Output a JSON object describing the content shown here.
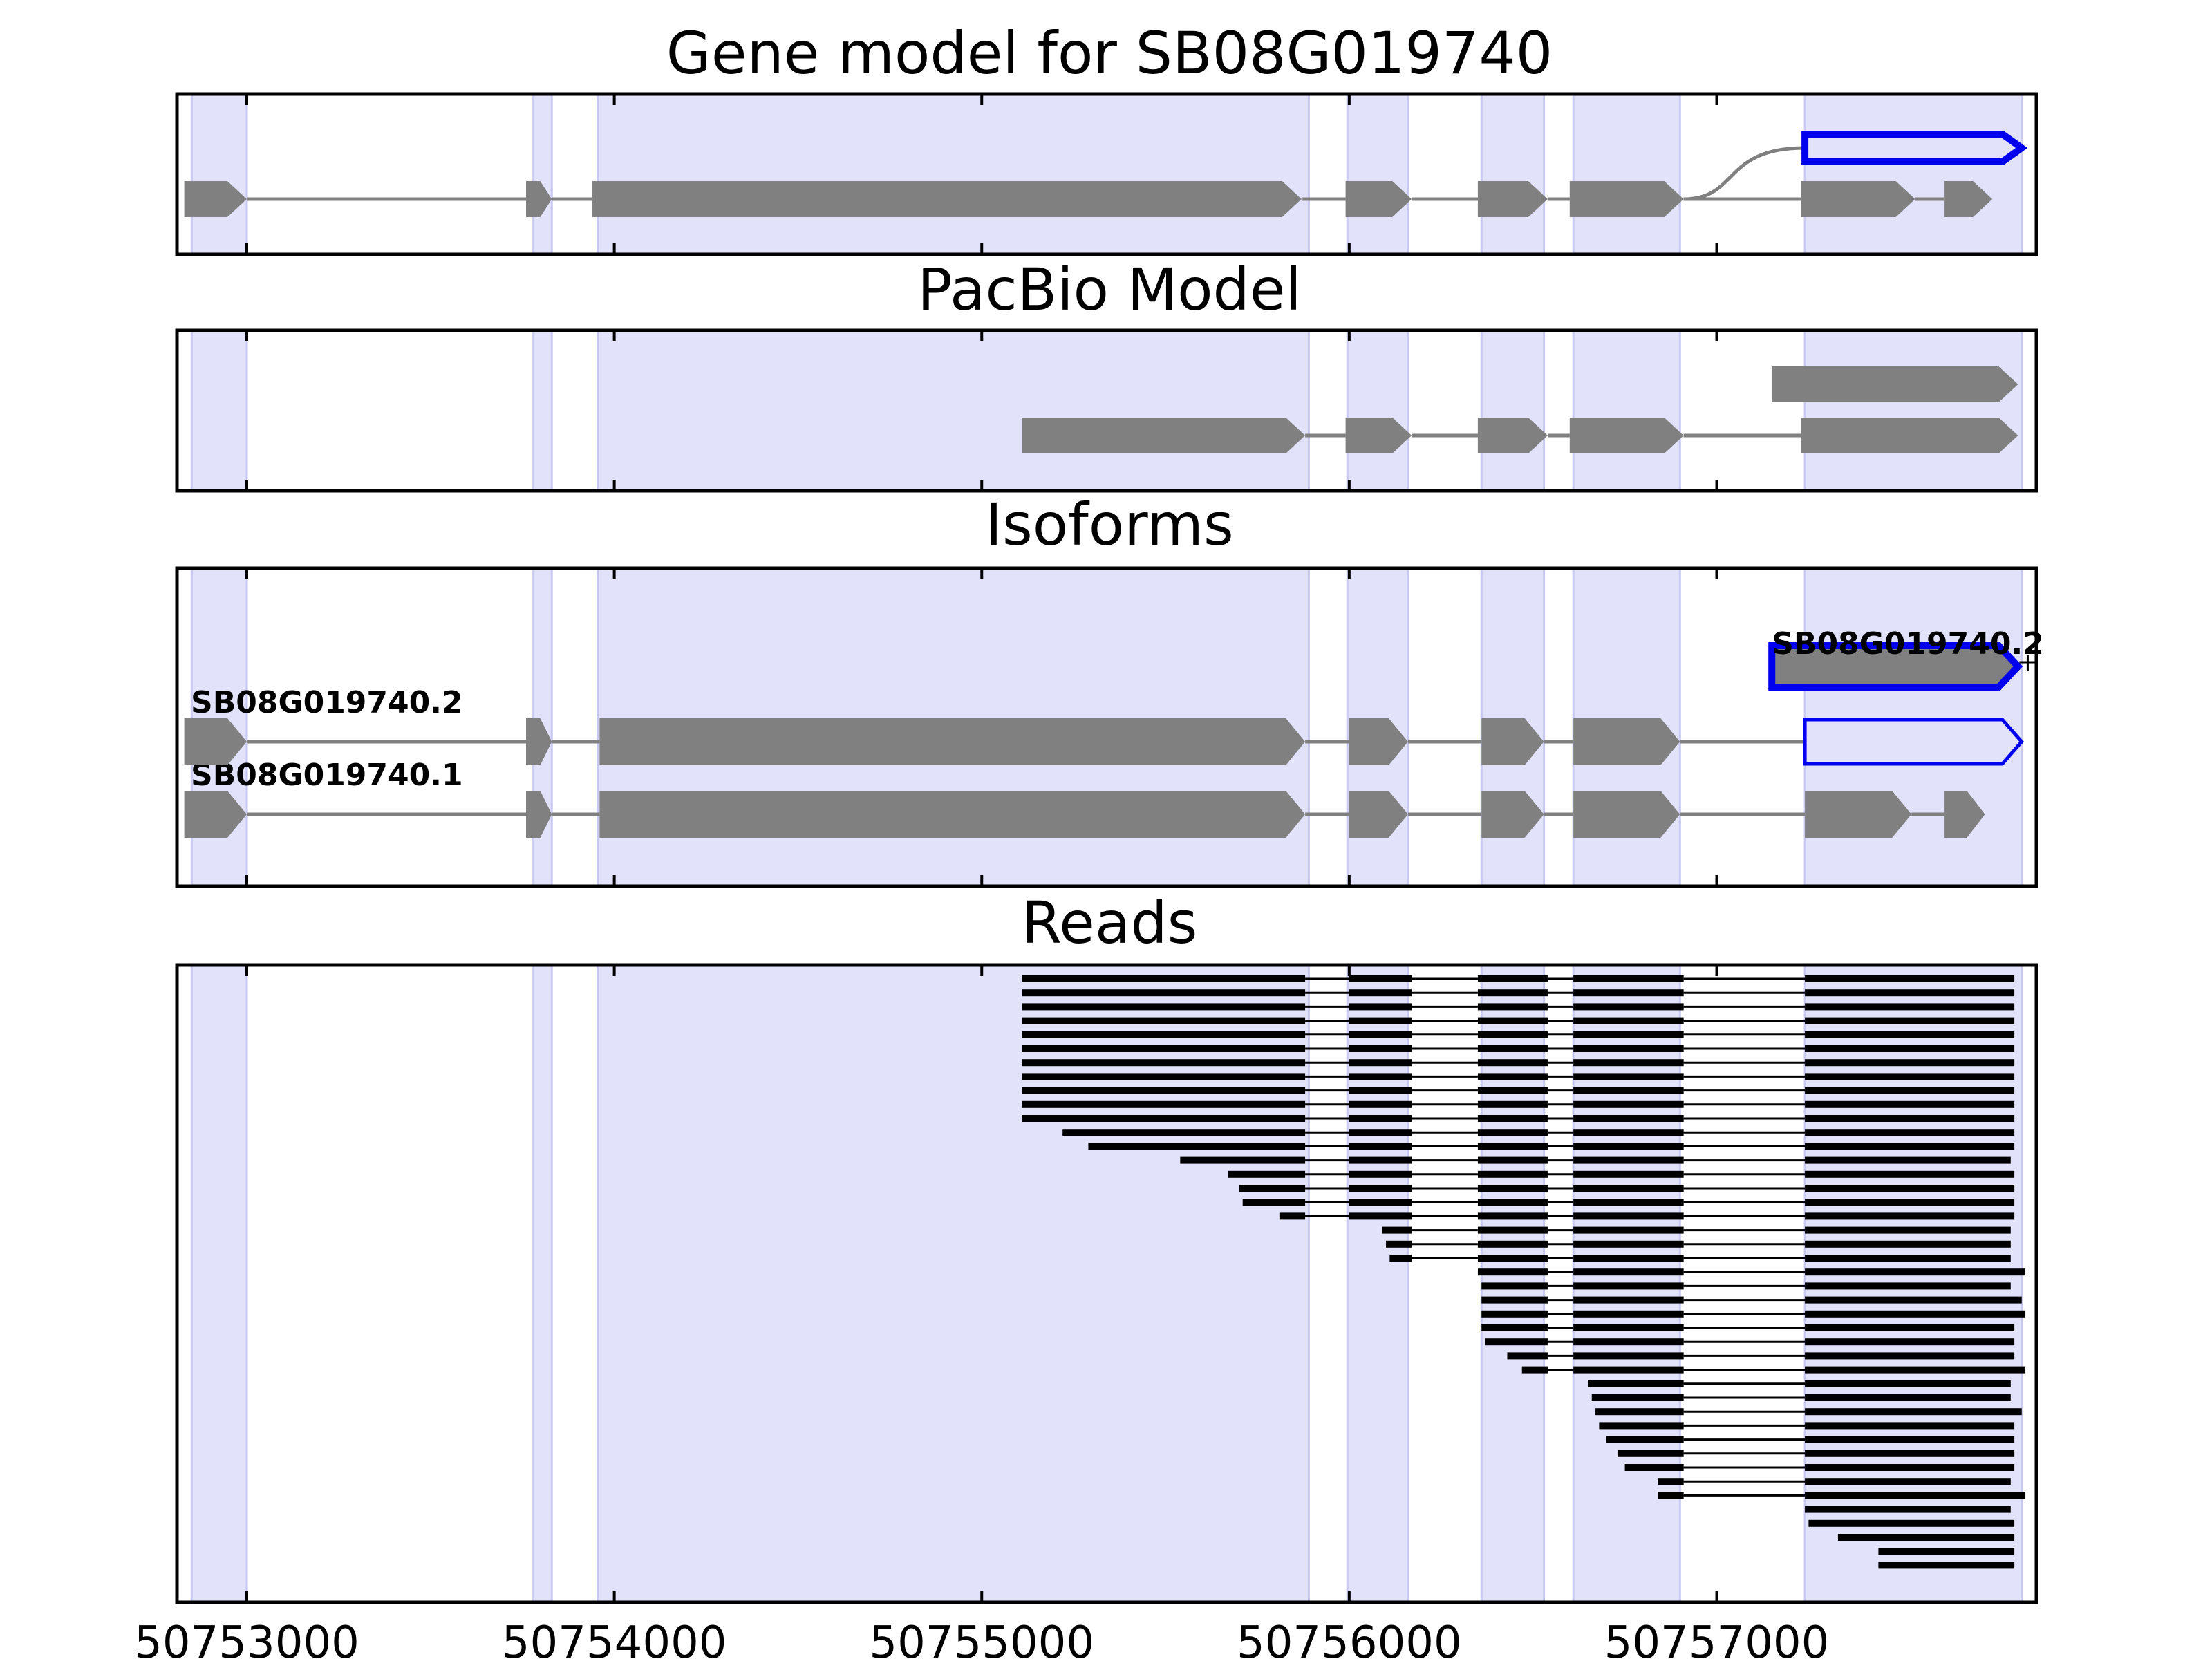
{
  "chart_data": {
    "type": "gene-track",
    "xlim": [
      50752810,
      50757870
    ],
    "x_ticks": [
      50753000,
      50754000,
      50755000,
      50756000,
      50757000
    ],
    "x_tick_labels": [
      "50753000",
      "50754000",
      "50755000",
      "50756000",
      "50757000"
    ],
    "exon_regions": [
      [
        50752850,
        50753000
      ],
      [
        50753780,
        50753830
      ],
      [
        50753955,
        50755890
      ],
      [
        50755995,
        50756160
      ],
      [
        50756360,
        50756530
      ],
      [
        50756610,
        50756900
      ],
      [
        50757240,
        50757830
      ]
    ],
    "colors": {
      "region": "#e2e2fb",
      "region_edge": "#c8c8f0",
      "feature": "#808080",
      "highlight": "#0000ee",
      "read": "#000000",
      "line": "#808080"
    },
    "panels": [
      {
        "title": "Gene model for SB08G019740",
        "rows": [
          {
            "exons": [
              [
                50752830,
                50753000
              ],
              [
                50753760,
                50753830
              ],
              [
                50753940,
                50755870
              ],
              [
                50755990,
                50756170
              ],
              [
                50756350,
                50756540
              ],
              [
                50756600,
                50756910
              ],
              [
                50757230,
                50757540
              ],
              [
                50757620,
                50757750
              ]
            ],
            "highlight": false
          },
          {
            "exons": [
              [
                50757240,
                50757830
              ]
            ],
            "highlight": true,
            "connects_from": 50756910
          }
        ]
      },
      {
        "title": "PacBio Model",
        "rows": [
          {
            "exons": [
              [
                50755110,
                50755880
              ],
              [
                50755990,
                50756170
              ],
              [
                50756350,
                50756540
              ],
              [
                50756600,
                50756910
              ],
              [
                50757230,
                50757820
              ]
            ],
            "highlight": false
          },
          {
            "exons": [
              [
                50757150,
                50757820
              ]
            ],
            "highlight": false
          }
        ]
      },
      {
        "title": "Isoforms",
        "rows": [
          {
            "label": "SB08G019740.1",
            "exons": [
              [
                50752830,
                50753000
              ],
              [
                50753760,
                50753830
              ],
              [
                50753960,
                50755880
              ],
              [
                50756000,
                50756160
              ],
              [
                50756360,
                50756530
              ],
              [
                50756610,
                50756900
              ],
              [
                50757240,
                50757530
              ],
              [
                50757620,
                50757730
              ]
            ],
            "highlight_exons": []
          },
          {
            "label": "SB08G019740.2",
            "exons": [
              [
                50752830,
                50753000
              ],
              [
                50753760,
                50753830
              ],
              [
                50753960,
                50755880
              ],
              [
                50756000,
                50756160
              ],
              [
                50756360,
                50756530
              ],
              [
                50756610,
                50756900
              ],
              [
                50757240,
                50757830
              ]
            ],
            "highlight_exons": [
              6
            ]
          },
          {
            "label": "SB08G019740.2",
            "exons": [
              [
                50757150,
                50757820
              ]
            ],
            "highlight_exons": [
              0
            ],
            "highlight_all": true
          }
        ]
      },
      {
        "title": "Reads",
        "reads": [
          [
            50755110,
            50757810
          ],
          [
            50755110,
            50757810
          ],
          [
            50755110,
            50757810
          ],
          [
            50755110,
            50757810
          ],
          [
            50755110,
            50757810
          ],
          [
            50755110,
            50757810
          ],
          [
            50755110,
            50757810
          ],
          [
            50755110,
            50757810
          ],
          [
            50755110,
            50757810
          ],
          [
            50755110,
            50757810
          ],
          [
            50755110,
            50757810
          ],
          [
            50755220,
            50757810
          ],
          [
            50755290,
            50757810
          ],
          [
            50755540,
            50757800
          ],
          [
            50755670,
            50757810
          ],
          [
            50755700,
            50757810
          ],
          [
            50755710,
            50757810
          ],
          [
            50755810,
            50757810
          ],
          [
            50756090,
            50757800
          ],
          [
            50756100,
            50757800
          ],
          [
            50756110,
            50757800
          ],
          [
            50756350,
            50757840
          ],
          [
            50756360,
            50757800
          ],
          [
            50756360,
            50757830
          ],
          [
            50756360,
            50757840
          ],
          [
            50756360,
            50757810
          ],
          [
            50756370,
            50757810
          ],
          [
            50756430,
            50757810
          ],
          [
            50756470,
            50757840
          ],
          [
            50756650,
            50757800
          ],
          [
            50756660,
            50757800
          ],
          [
            50756670,
            50757830
          ],
          [
            50756680,
            50757810
          ],
          [
            50756700,
            50757810
          ],
          [
            50756730,
            50757810
          ],
          [
            50756750,
            50757810
          ],
          [
            50756840,
            50757800
          ],
          [
            50756840,
            50757840
          ],
          [
            50757150,
            50757800
          ],
          [
            50757250,
            50757810
          ],
          [
            50757330,
            50757810
          ],
          [
            50757440,
            50757810
          ],
          [
            50757440,
            50757810
          ]
        ]
      }
    ]
  }
}
